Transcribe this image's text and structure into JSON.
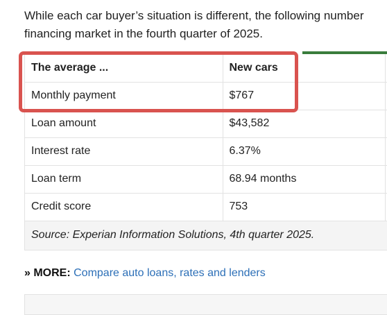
{
  "intro": {
    "line1": "While each car buyer’s situation is different, the following number",
    "line2": "financing market in the fourth quarter of 2025."
  },
  "table": {
    "header": [
      "The average ...",
      "New cars",
      ""
    ],
    "rows": [
      [
        "Monthly payment",
        "$767",
        ""
      ],
      [
        "Loan amount",
        "$43,582",
        ""
      ],
      [
        "Interest rate",
        "6.37%",
        ""
      ],
      [
        "Loan term",
        "68.94 months",
        ""
      ],
      [
        "Credit score",
        "753",
        ""
      ]
    ],
    "source": "Source: Experian Information Solutions, 4th quarter 2025."
  },
  "more": {
    "prefix": "» MORE:",
    "link": "Compare auto loans, rates and lenders"
  },
  "colors": {
    "highlight": "#d9534f",
    "accent_rule": "#3a7d3c",
    "link": "#2c6fb7"
  }
}
